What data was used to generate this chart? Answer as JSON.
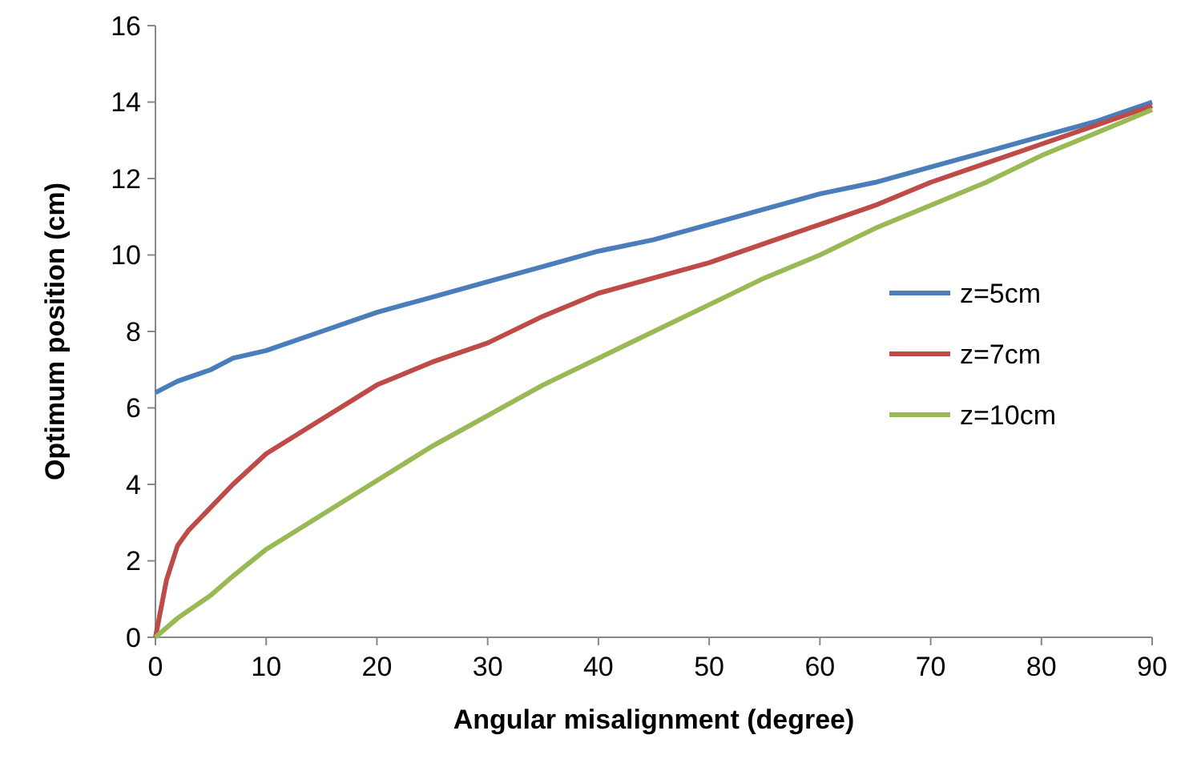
{
  "chart_data": {
    "type": "line",
    "xlabel": "Angular misalignment (degree)",
    "ylabel": "Optimum position (cm)",
    "xlim": [
      0,
      90
    ],
    "ylim": [
      0,
      16
    ],
    "xticks": [
      0,
      10,
      20,
      30,
      40,
      50,
      60,
      70,
      80,
      90
    ],
    "yticks": [
      0,
      2,
      4,
      6,
      8,
      10,
      12,
      14,
      16
    ],
    "grid": false,
    "legend": "right",
    "marker": "none",
    "line_style": "solid",
    "series": [
      {
        "name": "z=5cm",
        "color": "#4a7ebb",
        "x": [
          0,
          2,
          5,
          7,
          10,
          15,
          20,
          25,
          30,
          35,
          40,
          45,
          50,
          55,
          60,
          65,
          70,
          75,
          80,
          85,
          90
        ],
        "values": [
          6.4,
          6.7,
          7.0,
          7.3,
          7.5,
          8.0,
          8.5,
          8.9,
          9.3,
          9.7,
          10.1,
          10.4,
          10.8,
          11.2,
          11.6,
          11.9,
          12.3,
          12.7,
          13.1,
          13.5,
          14.0
        ]
      },
      {
        "name": "z=7cm",
        "color": "#be4b48",
        "x": [
          0,
          1,
          2,
          3,
          5,
          7,
          10,
          15,
          20,
          25,
          30,
          35,
          40,
          45,
          50,
          55,
          60,
          65,
          70,
          75,
          80,
          85,
          90
        ],
        "values": [
          0,
          1.5,
          2.4,
          2.8,
          3.4,
          4.0,
          4.8,
          5.7,
          6.6,
          7.2,
          7.7,
          8.4,
          9.0,
          9.4,
          9.8,
          10.3,
          10.8,
          11.3,
          11.9,
          12.4,
          12.9,
          13.4,
          13.9
        ]
      },
      {
        "name": "z=10cm",
        "color": "#98b954",
        "x": [
          0,
          2,
          5,
          7,
          10,
          15,
          20,
          25,
          30,
          35,
          40,
          45,
          50,
          55,
          60,
          65,
          70,
          75,
          80,
          85,
          90
        ],
        "values": [
          0,
          0.5,
          1.1,
          1.6,
          2.3,
          3.2,
          4.1,
          5.0,
          5.8,
          6.6,
          7.3,
          8.0,
          8.7,
          9.4,
          10.0,
          10.7,
          11.3,
          11.9,
          12.6,
          13.2,
          13.8
        ]
      }
    ]
  }
}
